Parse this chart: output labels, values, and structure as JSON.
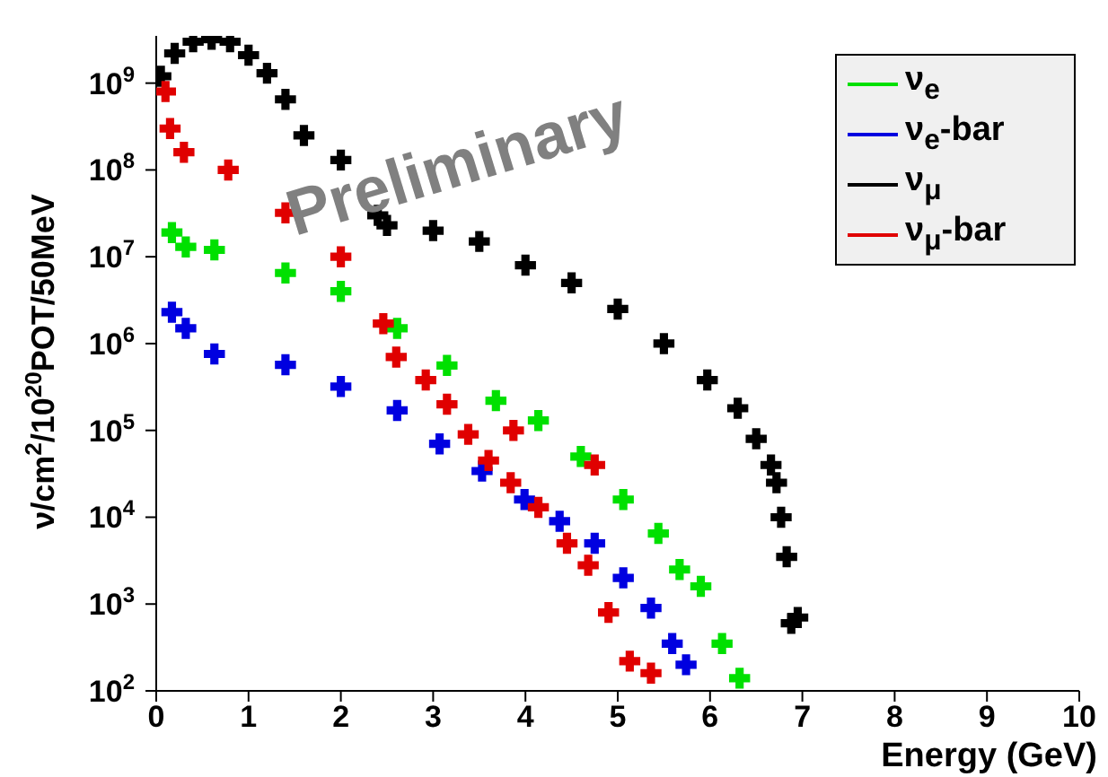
{
  "chart_data": {
    "type": "scatter",
    "xlabel": "Energy (GeV)",
    "ylabel": "ν/cm$^{2}$/10$^{20}$POT/50MeV",
    "annotations": [
      "Preliminary"
    ],
    "log": "y",
    "grid": false,
    "legend": "top right",
    "marker": "cross",
    "xlim": [
      0,
      10
    ],
    "xticks": [
      0,
      1,
      2,
      3,
      4,
      5,
      6,
      7,
      8,
      9,
      10
    ],
    "ylim": [
      100,
      3500000000
    ],
    "yticks": [
      {
        "value": 100,
        "label": "10$^{2}$"
      },
      {
        "value": 1000,
        "label": "10$^{3}$"
      },
      {
        "value": 10000,
        "label": "10$^{4}$"
      },
      {
        "value": 100000,
        "label": "10$^{5}$"
      },
      {
        "value": 1000000,
        "label": "10$^{6}$"
      },
      {
        "value": 10000000,
        "label": "10$^{7}$"
      },
      {
        "value": 100000000,
        "label": "10$^{8}$"
      },
      {
        "value": 1000000000,
        "label": "10$^{9}$"
      }
    ],
    "series": [
      {
        "name": "ν$_{e}$",
        "color": "#00e000",
        "x": [
          0.17,
          0.32,
          0.63,
          1.4,
          2.0,
          2.61,
          3.15,
          3.68,
          4.14,
          4.6,
          5.06,
          5.44,
          5.67,
          5.9,
          6.13,
          6.32
        ],
        "values": [
          19000000,
          13000000,
          12000000,
          6500000,
          4000000,
          1500000,
          560000,
          220000,
          130000,
          50000,
          16000,
          6500,
          2500,
          1600,
          350,
          140
        ]
      },
      {
        "name": "ν$_{e}$-bar",
        "color": "#0000e0",
        "x": [
          0.17,
          0.32,
          0.63,
          1.4,
          2.0,
          2.61,
          3.07,
          3.53,
          3.99,
          4.37,
          4.75,
          5.06,
          5.36,
          5.59,
          5.74
        ],
        "values": [
          2300000,
          1500000,
          760000,
          570000,
          320000,
          170000,
          70000,
          34000,
          16000,
          9000,
          5000,
          2000,
          900,
          350,
          200
        ]
      },
      {
        "name": "ν$_{μ}$",
        "color": "#000000",
        "x": [
          0.05,
          0.2,
          0.4,
          0.6,
          0.8,
          1.0,
          1.2,
          1.4,
          1.6,
          2.0,
          2.4,
          2.5,
          3.0,
          3.5,
          4.0,
          4.5,
          5.0,
          5.5,
          5.97,
          6.3,
          6.5,
          6.66,
          6.72,
          6.77,
          6.83,
          6.88,
          6.95
        ],
        "values": [
          1200000000,
          2200000000,
          3000000000,
          3200000000,
          3000000000,
          2100000000,
          1300000000,
          650000000,
          250000000,
          130000000,
          30000000,
          23000000,
          20000000,
          15000000,
          8000000,
          5000000,
          2500000,
          1000000,
          380000,
          180000,
          80000,
          40000,
          25000,
          10000,
          3500,
          600,
          700
        ]
      },
      {
        "name": "ν$_{μ}$-bar",
        "color": "#e00000",
        "x": [
          0.1,
          0.15,
          0.3,
          0.78,
          1.4,
          2.0,
          2.46,
          2.6,
          2.92,
          3.15,
          3.38,
          3.6,
          3.84,
          3.87,
          4.14,
          4.45,
          4.68,
          4.75,
          4.9,
          5.13,
          5.36
        ],
        "values": [
          800000000,
          300000000,
          160000000,
          100000000,
          32000000,
          10000000,
          1700000,
          700000,
          380000,
          200000,
          90000,
          45000,
          25000,
          100000,
          13000,
          5000,
          2800,
          40000,
          800,
          220,
          160
        ]
      }
    ]
  }
}
